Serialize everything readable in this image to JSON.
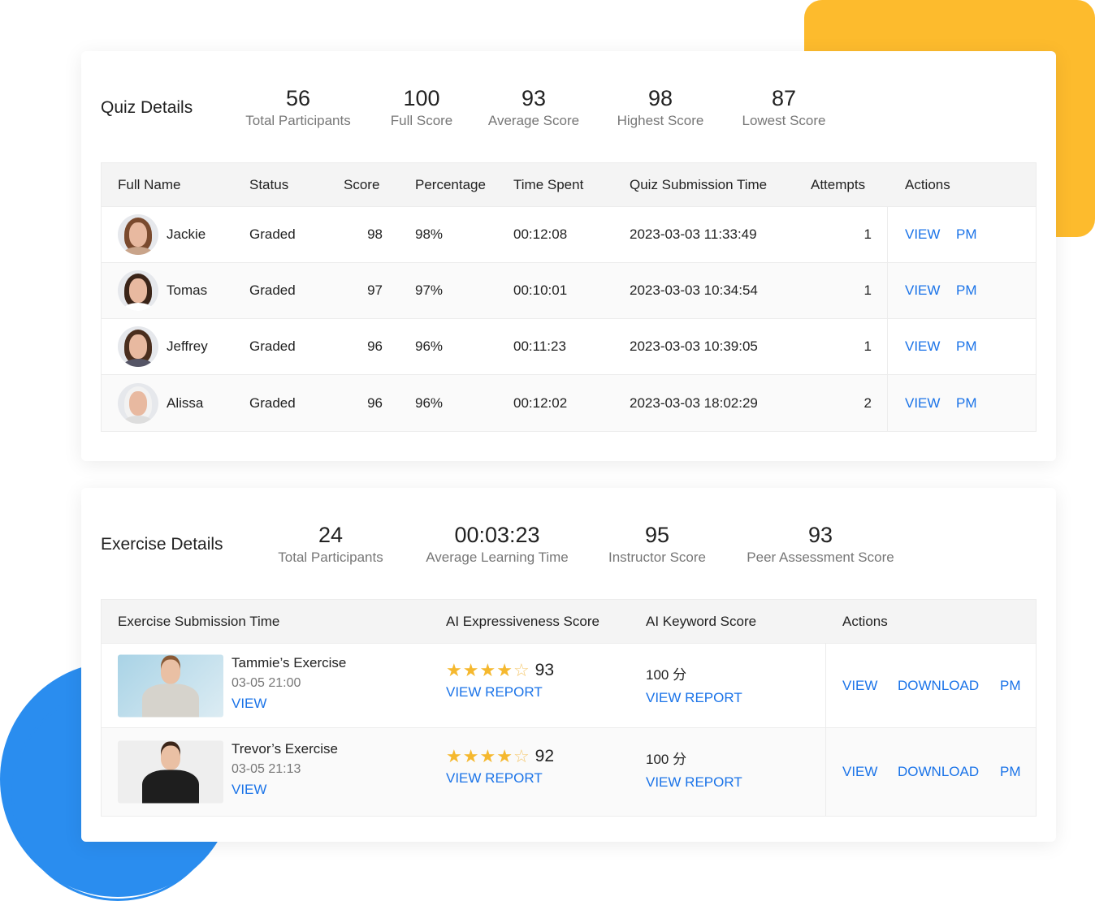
{
  "colors": {
    "accent": "#1a73e8",
    "decor_yellow": "#fdbb2d",
    "decor_blue": "#2a8def",
    "star": "#f5b82e"
  },
  "quiz": {
    "title": "Quiz Details",
    "stats": [
      {
        "value": "56",
        "label": "Total Participants"
      },
      {
        "value": "100",
        "label": "Full Score"
      },
      {
        "value": "93",
        "label": "Average Score"
      },
      {
        "value": "98",
        "label": "Highest Score"
      },
      {
        "value": "87",
        "label": "Lowest Score"
      }
    ],
    "columns": [
      "Full Name",
      "Status",
      "Score",
      "Percentage",
      "Time Spent",
      "Quiz Submission Time",
      "Attempts",
      "Actions"
    ],
    "rows": [
      {
        "name": "Jackie",
        "status": "Graded",
        "score": "98",
        "percentage": "98%",
        "time_spent": "00:12:08",
        "submission": "2023-03-03 11:33:49",
        "attempts": "1",
        "view": "VIEW",
        "pm": "PM"
      },
      {
        "name": "Tomas",
        "status": "Graded",
        "score": "97",
        "percentage": "97%",
        "time_spent": "00:10:01",
        "submission": "2023-03-03 10:34:54",
        "attempts": "1",
        "view": "VIEW",
        "pm": "PM"
      },
      {
        "name": "Jeffrey",
        "status": "Graded",
        "score": "96",
        "percentage": "96%",
        "time_spent": "00:11:23",
        "submission": "2023-03-03 10:39:05",
        "attempts": "1",
        "view": "VIEW",
        "pm": "PM"
      },
      {
        "name": "Alissa",
        "status": "Graded",
        "score": "96",
        "percentage": "96%",
        "time_spent": "00:12:02",
        "submission": "2023-03-03 18:02:29",
        "attempts": "2",
        "view": "VIEW",
        "pm": "PM"
      }
    ]
  },
  "exercise": {
    "title": "Exercise Details",
    "stats": [
      {
        "value": "24",
        "label": "Total Participants"
      },
      {
        "value": "00:03:23",
        "label": "Average Learning Time"
      },
      {
        "value": "95",
        "label": "Instructor Score"
      },
      {
        "value": "93",
        "label": "Peer Assessment Score"
      }
    ],
    "columns": [
      "Exercise Submission Time",
      "AI Expressiveness Score",
      "AI Keyword Score",
      "Actions"
    ],
    "rows": [
      {
        "title": "Tammie’s Exercise",
        "time": "03-05 21:00",
        "view": "VIEW",
        "stars": 4,
        "ai_score": "93",
        "ai_report": "VIEW REPORT",
        "keyword_score": "100 分",
        "keyword_report": "VIEW REPORT",
        "actions": {
          "view": "VIEW",
          "download": "DOWNLOAD",
          "pm": "PM"
        }
      },
      {
        "title": "Trevor’s Exercise",
        "time": "03-05 21:13",
        "view": "VIEW",
        "stars": 4,
        "ai_score": "92",
        "ai_report": "VIEW REPORT",
        "keyword_score": "100 分",
        "keyword_report": "VIEW REPORT",
        "actions": {
          "view": "VIEW",
          "download": "DOWNLOAD",
          "pm": "PM"
        }
      }
    ]
  }
}
